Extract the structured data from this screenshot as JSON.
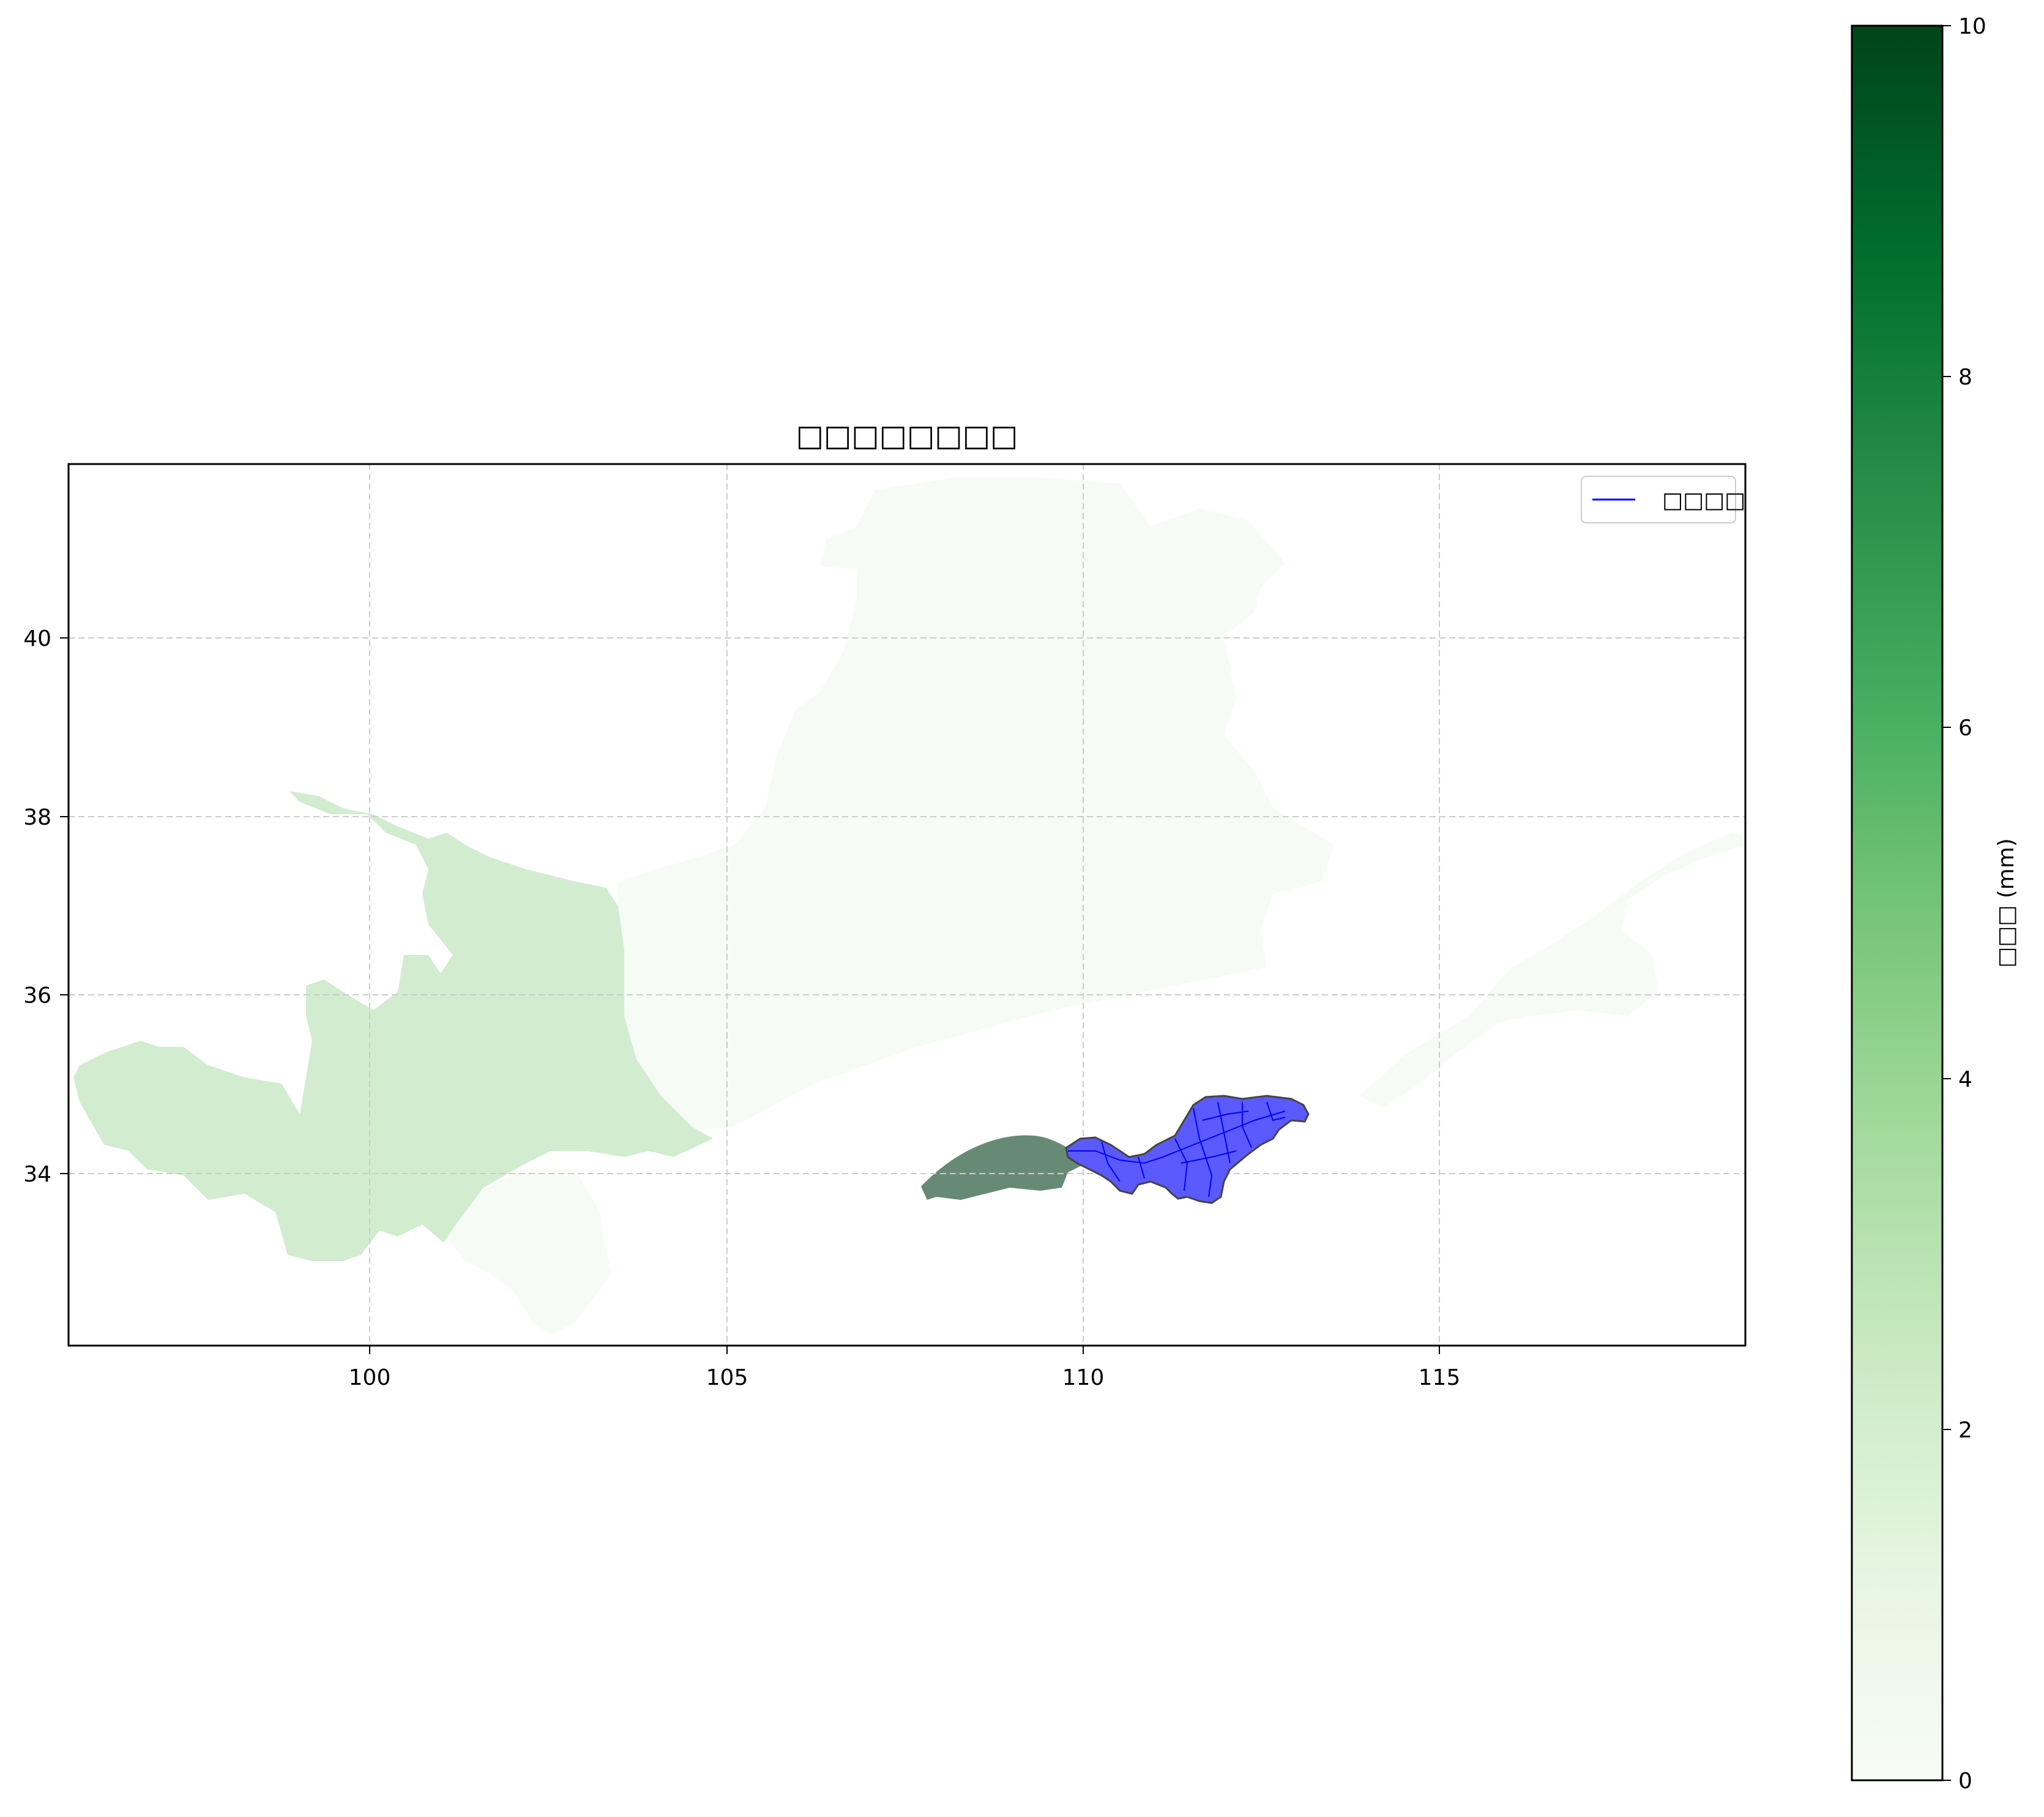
{
  "figure": {
    "title": "□□□□□□□□",
    "legend": {
      "label": "□□□□",
      "placement": "upper-right"
    },
    "colorbar": {
      "label": "□□□ (mm)",
      "min": 0,
      "max": 10,
      "ticks": [
        "0",
        "2",
        "4",
        "6",
        "8",
        "10"
      ],
      "colormap": "Greens"
    }
  },
  "map": {
    "x_ticks": [
      "100",
      "105",
      "110",
      "115"
    ],
    "y_ticks": [
      "34",
      "36",
      "38",
      "40"
    ],
    "lon_range": [
      95.8,
      119.3
    ],
    "lat_range": [
      32.0,
      41.9
    ],
    "grid": true,
    "colors": {
      "region_low": "#f7fbf5",
      "region_mid": "#d2ecd0",
      "region_dark": "#678a74",
      "rivers": "#0000ff",
      "boundary": "#444444",
      "gridline": "#cccccc"
    },
    "regions": [
      {
        "name": "west-region",
        "value_mm": 2.0
      },
      {
        "name": "north-region",
        "value_mm": 0.1
      },
      {
        "name": "south-lobe",
        "value_mm": 0.1
      },
      {
        "name": "east-strip",
        "value_mm": 0.1
      },
      {
        "name": "dark-crescent",
        "value_mm": 6.5
      }
    ]
  }
}
